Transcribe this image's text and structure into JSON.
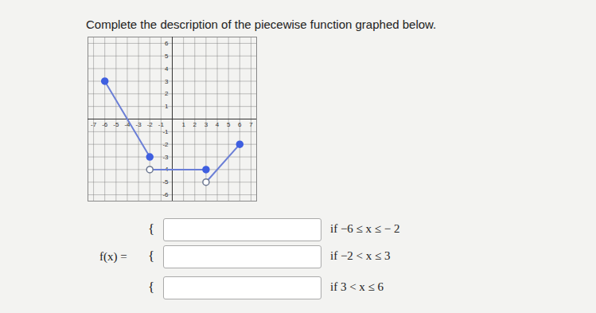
{
  "question": "Complete the description of the piecewise function graphed below.",
  "chart_data": {
    "type": "line",
    "xlim": [
      -7.5,
      7.5
    ],
    "ylim": [
      -6.5,
      6.5
    ],
    "xticks": [
      -7,
      -6,
      -5,
      -4,
      -3,
      -2,
      -1,
      1,
      2,
      3,
      4,
      5,
      6,
      7
    ],
    "yticks": [
      -6,
      -5,
      -4,
      -3,
      -2,
      -1,
      1,
      2,
      3,
      4,
      5,
      6
    ],
    "grid": true,
    "series": [
      {
        "type": "line",
        "color": "#6b7fd6",
        "x": [
          -6,
          -2
        ],
        "values": [
          3,
          -3
        ]
      },
      {
        "type": "line",
        "color": "#6b7fd6",
        "x": [
          -2,
          3
        ],
        "values": [
          -4,
          -4
        ]
      },
      {
        "type": "line",
        "color": "#6b7fd6",
        "x": [
          3,
          6
        ],
        "values": [
          -5,
          -2
        ]
      },
      {
        "type": "scatter",
        "marker": "filled",
        "color": "#3f5fe0",
        "x": [
          -6,
          -2,
          3,
          6
        ],
        "values": [
          3,
          -3,
          -4,
          -2
        ]
      },
      {
        "type": "scatter",
        "marker": "open",
        "color": "#6a7690",
        "x": [
          -2,
          3
        ],
        "values": [
          -4,
          -5
        ]
      }
    ]
  },
  "formula": {
    "lhs": "f(x) =",
    "brace": "{",
    "rows": [
      {
        "condition": "if  −6 ≤ x ≤ − 2"
      },
      {
        "condition": "if  −2 < x ≤ 3"
      },
      {
        "condition": "if  3 < x ≤ 6"
      }
    ]
  }
}
